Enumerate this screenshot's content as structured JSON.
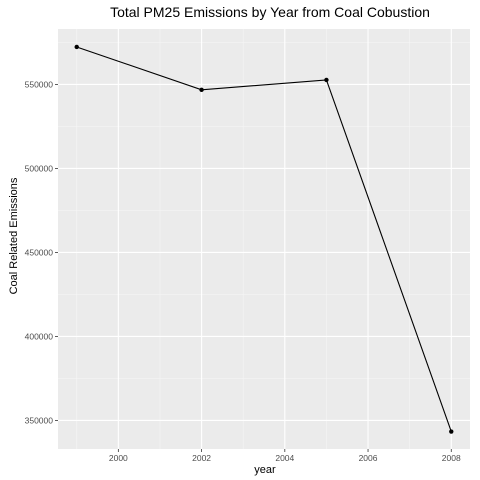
{
  "chart_data": {
    "type": "line",
    "title": "Total PM25 Emissions by Year from Coal Cobustion",
    "xlabel": "year",
    "ylabel": "Coal Related Emissions",
    "x": [
      1999,
      2002,
      2005,
      2008
    ],
    "series": [
      {
        "values": [
          572300,
          546800,
          552700,
          343400
        ]
      }
    ],
    "xlim": [
      1998.55,
      2008.45
    ],
    "ylim": [
      333000,
      583000
    ],
    "xticks": [
      2000,
      2002,
      2004,
      2006,
      2008
    ],
    "xtick_labels": [
      "2000",
      "2002",
      "2004",
      "2006",
      "2008"
    ],
    "yticks": [
      350000,
      400000,
      450000,
      500000,
      550000
    ],
    "ytick_labels": [
      "350000",
      "400000",
      "450000",
      "500000",
      "550000"
    ],
    "grid": true,
    "legend": "none",
    "colors": {
      "panel": "#ebebeb",
      "grid_major": "#ffffff",
      "line": "#000000",
      "point": "#000000",
      "tick_text": "#4d4d4d"
    }
  }
}
